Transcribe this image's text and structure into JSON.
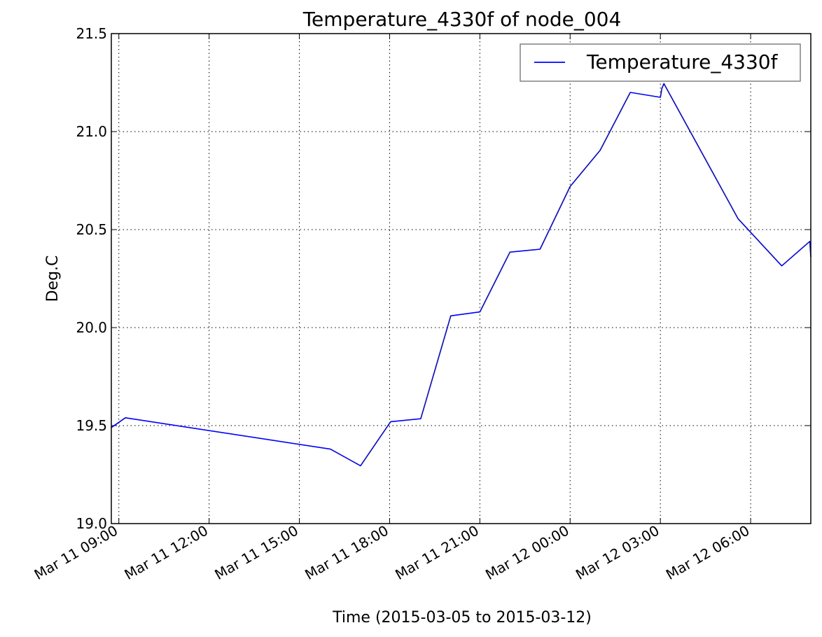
{
  "chart_data": {
    "type": "line",
    "title": "Temperature_4330f of node_004",
    "xlabel": "Time (2015-03-05 to 2015-03-12)",
    "ylabel": "Deg.C",
    "ylim": [
      19.0,
      21.5
    ],
    "xlim": [
      "2015-03-11 08:45",
      "2015-03-12 08:00"
    ],
    "grid": true,
    "legend_position": "top-right",
    "y_ticks": [
      "19.0",
      "19.5",
      "20.0",
      "20.5",
      "21.0",
      "21.5"
    ],
    "x_ticks": [
      {
        "label": "Mar 11 09:00",
        "time": "2015-03-11 09:00"
      },
      {
        "label": "Mar 11 12:00",
        "time": "2015-03-11 12:00"
      },
      {
        "label": "Mar 11 15:00",
        "time": "2015-03-11 15:00"
      },
      {
        "label": "Mar 11 18:00",
        "time": "2015-03-11 18:00"
      },
      {
        "label": "Mar 11 21:00",
        "time": "2015-03-11 21:00"
      },
      {
        "label": "Mar 12 00:00",
        "time": "2015-03-12 00:00"
      },
      {
        "label": "Mar 12 03:00",
        "time": "2015-03-12 03:00"
      },
      {
        "label": "Mar 12 06:00",
        "time": "2015-03-12 06:00"
      }
    ],
    "series": [
      {
        "name": "Temperature_4330f",
        "color": "#0000ff",
        "points": [
          {
            "x": "2015-03-11 08:45",
            "y": 19.49
          },
          {
            "x": "2015-03-11 09:13",
            "y": 19.54
          },
          {
            "x": "2015-03-11 16:02",
            "y": 19.38
          },
          {
            "x": "2015-03-11 17:02",
            "y": 19.295
          },
          {
            "x": "2015-03-11 18:02",
            "y": 19.52
          },
          {
            "x": "2015-03-11 19:02",
            "y": 19.535
          },
          {
            "x": "2015-03-11 20:02",
            "y": 20.06
          },
          {
            "x": "2015-03-11 21:00",
            "y": 20.08
          },
          {
            "x": "2015-03-11 22:00",
            "y": 20.385
          },
          {
            "x": "2015-03-11 23:00",
            "y": 20.4
          },
          {
            "x": "2015-03-12 00:00",
            "y": 20.72
          },
          {
            "x": "2015-03-12 01:00",
            "y": 20.905
          },
          {
            "x": "2015-03-12 02:00",
            "y": 21.2
          },
          {
            "x": "2015-03-12 03:00",
            "y": 21.175
          },
          {
            "x": "2015-03-12 03:03",
            "y": 21.22
          },
          {
            "x": "2015-03-12 03:07",
            "y": 21.245
          },
          {
            "x": "2015-03-12 05:35",
            "y": 20.555
          },
          {
            "x": "2015-03-12 07:02",
            "y": 20.315
          },
          {
            "x": "2015-03-12 07:58",
            "y": 20.44
          },
          {
            "x": "2015-03-12 08:00",
            "y": 20.36
          }
        ]
      }
    ]
  }
}
